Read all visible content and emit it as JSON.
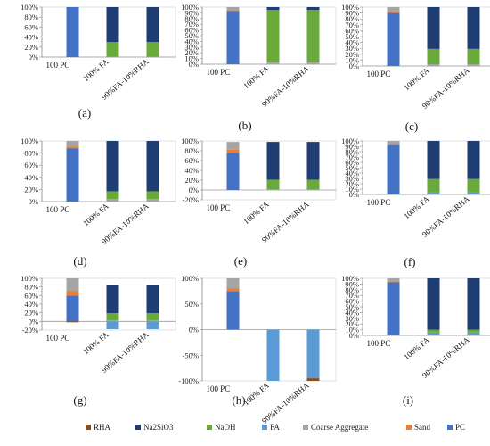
{
  "figure": {
    "legend": [
      {
        "name": "RHA",
        "color": "#8B4A1E"
      },
      {
        "name": "Na2SiO3",
        "color": "#1F3D73"
      },
      {
        "name": "NaOH",
        "color": "#6AAA3A"
      },
      {
        "name": "FA",
        "color": "#5B9BD5"
      },
      {
        "name": "Coarse Aggregate",
        "color": "#A5A5A5"
      },
      {
        "name": "Sand",
        "color": "#ED7D31"
      },
      {
        "name": "PC",
        "color": "#4472C4"
      }
    ]
  },
  "chart_data": [
    {
      "panel_label": "(a)",
      "type": "bar",
      "stacked": true,
      "categories": [
        "100 PC",
        "100% FA",
        "90%FA-10%RHA"
      ],
      "ylim": [
        0,
        100
      ],
      "yticks": [
        "0%",
        "20%",
        "40%",
        "60%",
        "80%",
        "100%"
      ],
      "series": [
        {
          "name": "PC",
          "values": [
            100,
            0,
            0
          ]
        },
        {
          "name": "Sand",
          "values": [
            0,
            0,
            0
          ]
        },
        {
          "name": "Coarse Aggregate",
          "values": [
            0,
            0,
            0
          ]
        },
        {
          "name": "FA",
          "values": [
            0,
            1,
            1
          ]
        },
        {
          "name": "NaOH",
          "values": [
            0,
            29,
            29
          ]
        },
        {
          "name": "Na2SiO3",
          "values": [
            0,
            70,
            70
          ]
        },
        {
          "name": "RHA",
          "values": [
            0,
            0,
            0
          ]
        }
      ]
    },
    {
      "panel_label": "(b)",
      "type": "bar",
      "stacked": true,
      "categories": [
        "100 PC",
        "100% FA",
        "90%FA-10%RHA"
      ],
      "ylim": [
        0,
        100
      ],
      "yticks": [
        "0%",
        "10%",
        "20%",
        "30%",
        "40%",
        "50%",
        "60%",
        "70%",
        "80%",
        "90%",
        "100%"
      ],
      "series": [
        {
          "name": "PC",
          "values": [
            93,
            0,
            0
          ]
        },
        {
          "name": "Sand",
          "values": [
            2,
            0,
            0
          ]
        },
        {
          "name": "Coarse Aggregate",
          "values": [
            5,
            3,
            3
          ]
        },
        {
          "name": "FA",
          "values": [
            0,
            0,
            0
          ]
        },
        {
          "name": "NaOH",
          "values": [
            0,
            92,
            92
          ]
        },
        {
          "name": "Na2SiO3",
          "values": [
            0,
            5,
            5
          ]
        },
        {
          "name": "RHA",
          "values": [
            0,
            0,
            0
          ]
        }
      ]
    },
    {
      "panel_label": "(c)",
      "type": "bar",
      "stacked": true,
      "categories": [
        "100 PC",
        "100% FA",
        "90%FA-10%RHA"
      ],
      "ylim": [
        0,
        100
      ],
      "yticks": [
        "0%",
        "10%",
        "20%",
        "30%",
        "40%",
        "50%",
        "60%",
        "70%",
        "80%",
        "90%",
        "100%"
      ],
      "series": [
        {
          "name": "PC",
          "values": [
            90,
            0,
            0
          ]
        },
        {
          "name": "Sand",
          "values": [
            3,
            0,
            0
          ]
        },
        {
          "name": "Coarse Aggregate",
          "values": [
            7,
            3,
            3
          ]
        },
        {
          "name": "FA",
          "values": [
            0,
            0,
            0
          ]
        },
        {
          "name": "NaOH",
          "values": [
            0,
            26,
            26
          ]
        },
        {
          "name": "Na2SiO3",
          "values": [
            0,
            71,
            71
          ]
        },
        {
          "name": "RHA",
          "values": [
            0,
            0,
            0
          ]
        }
      ]
    },
    {
      "panel_label": "(d)",
      "type": "bar",
      "stacked": true,
      "categories": [
        "100 PC",
        "100% FA",
        "90%FA-10%RHA"
      ],
      "ylim": [
        0,
        100
      ],
      "yticks": [
        "0%",
        "20%",
        "40%",
        "60%",
        "80%",
        "100%"
      ],
      "series": [
        {
          "name": "PC",
          "values": [
            88,
            0,
            0
          ]
        },
        {
          "name": "Sand",
          "values": [
            3,
            0,
            0
          ]
        },
        {
          "name": "Coarse Aggregate",
          "values": [
            9,
            4,
            4
          ]
        },
        {
          "name": "FA",
          "values": [
            0,
            0,
            0
          ]
        },
        {
          "name": "NaOH",
          "values": [
            0,
            13,
            13
          ]
        },
        {
          "name": "Na2SiO3",
          "values": [
            0,
            83,
            83
          ]
        },
        {
          "name": "RHA",
          "values": [
            0,
            0,
            0
          ]
        }
      ]
    },
    {
      "panel_label": "(e)",
      "type": "bar",
      "stacked": true,
      "categories": [
        "100 PC",
        "100% FA",
        "90%FA-10%RHA"
      ],
      "ylim": [
        -20,
        100
      ],
      "yticks": [
        "-20%",
        "0%",
        "20%",
        "40%",
        "60%",
        "80%",
        "100%"
      ],
      "series": [
        {
          "name": "PC",
          "values": [
            76,
            0,
            0
          ]
        },
        {
          "name": "Sand",
          "values": [
            6,
            0,
            0
          ]
        },
        {
          "name": "Coarse Aggregate",
          "values": [
            16,
            1,
            1
          ]
        },
        {
          "name": "FA",
          "values": [
            0,
            0,
            0
          ]
        },
        {
          "name": "NaOH",
          "values": [
            0,
            20,
            20
          ]
        },
        {
          "name": "Na2SiO3",
          "values": [
            0,
            77,
            77
          ]
        },
        {
          "name": "RHA",
          "values": [
            0,
            0,
            0
          ]
        }
      ]
    },
    {
      "panel_label": "(f)",
      "type": "bar",
      "stacked": true,
      "categories": [
        "100 PC",
        "100% FA",
        "90%FA-10%RHA"
      ],
      "ylim": [
        0,
        100
      ],
      "yticks": [
        "0%",
        "10%",
        "20%",
        "30%",
        "40%",
        "50%",
        "60%",
        "70%",
        "80%",
        "90%",
        "100%"
      ],
      "series": [
        {
          "name": "PC",
          "values": [
            93,
            0,
            0
          ]
        },
        {
          "name": "Sand",
          "values": [
            2,
            0,
            0
          ]
        },
        {
          "name": "Coarse Aggregate",
          "values": [
            5,
            1,
            1
          ]
        },
        {
          "name": "FA",
          "values": [
            0,
            3,
            3
          ]
        },
        {
          "name": "NaOH",
          "values": [
            0,
            25,
            25
          ]
        },
        {
          "name": "Na2SiO3",
          "values": [
            0,
            71,
            71
          ]
        },
        {
          "name": "RHA",
          "values": [
            0,
            0,
            0
          ]
        }
      ]
    },
    {
      "panel_label": "(g)",
      "type": "bar",
      "stacked": true,
      "categories": [
        "100 PC",
        "100% FA",
        "90%FA-10%RHA"
      ],
      "ylim": [
        -20,
        100
      ],
      "yticks": [
        "-20%",
        "0%",
        "20%",
        "40%",
        "60%",
        "80%",
        "100%"
      ],
      "series": [
        {
          "name": "PC",
          "values": [
            60,
            0,
            0
          ]
        },
        {
          "name": "Sand",
          "values": [
            10,
            0,
            0
          ]
        },
        {
          "name": "Coarse Aggregate",
          "values": [
            30,
            2,
            2
          ]
        },
        {
          "name": "FA",
          "values": [
            0,
            -18,
            -18
          ]
        },
        {
          "name": "NaOH",
          "values": [
            0,
            17,
            17
          ]
        },
        {
          "name": "Na2SiO3",
          "values": [
            0,
            65,
            65
          ]
        },
        {
          "name": "RHA",
          "values": [
            -2,
            0,
            0
          ]
        }
      ]
    },
    {
      "panel_label": "(h)",
      "type": "bar",
      "stacked": true,
      "categories": [
        "100 PC",
        "100% FA",
        "90%FA-10%RHA"
      ],
      "ylim": [
        -100,
        100
      ],
      "yticks": [
        "-100%",
        "-50%",
        "0%",
        "50%",
        "100%"
      ],
      "series": [
        {
          "name": "PC",
          "values": [
            75,
            0,
            0
          ]
        },
        {
          "name": "Sand",
          "values": [
            5,
            0,
            0
          ]
        },
        {
          "name": "Coarse Aggregate",
          "values": [
            20,
            0,
            0
          ]
        },
        {
          "name": "FA",
          "values": [
            0,
            -100,
            -95
          ]
        },
        {
          "name": "NaOH",
          "values": [
            0,
            0,
            0
          ]
        },
        {
          "name": "Na2SiO3",
          "values": [
            0,
            0,
            0
          ]
        },
        {
          "name": "RHA",
          "values": [
            0,
            0,
            -5
          ]
        }
      ]
    },
    {
      "panel_label": "(i)",
      "type": "bar",
      "stacked": true,
      "categories": [
        "100 PC",
        "100% FA",
        "90%FA-10%RHA"
      ],
      "ylim": [
        0,
        100
      ],
      "yticks": [
        "0%",
        "10%",
        "20%",
        "30%",
        "40%",
        "50%",
        "60%",
        "70%",
        "80%",
        "90%",
        "100%"
      ],
      "series": [
        {
          "name": "PC",
          "values": [
            93,
            0,
            0
          ]
        },
        {
          "name": "Sand",
          "values": [
            2,
            0,
            0
          ]
        },
        {
          "name": "Coarse Aggregate",
          "values": [
            5,
            1,
            1
          ]
        },
        {
          "name": "FA",
          "values": [
            0,
            4,
            4
          ]
        },
        {
          "name": "NaOH",
          "values": [
            0,
            5,
            5
          ]
        },
        {
          "name": "Na2SiO3",
          "values": [
            0,
            90,
            90
          ]
        },
        {
          "name": "RHA",
          "values": [
            0,
            0,
            0
          ]
        }
      ]
    }
  ]
}
